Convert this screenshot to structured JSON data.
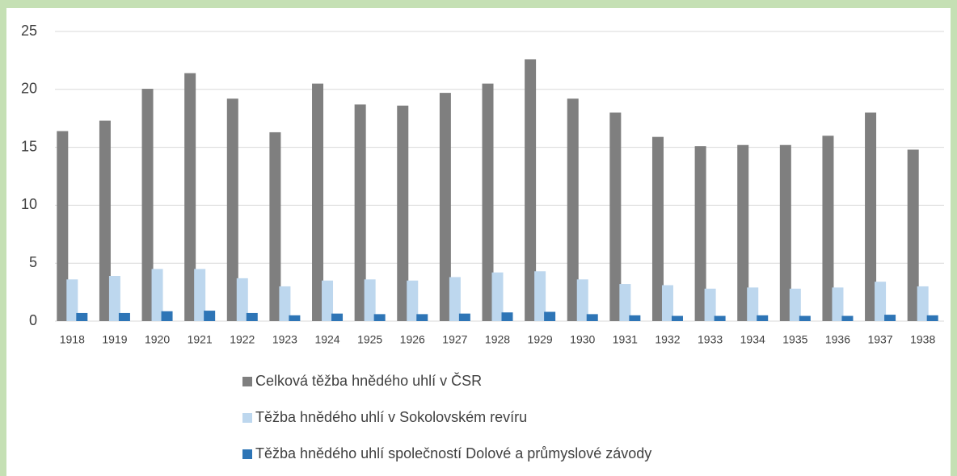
{
  "chart_data": {
    "type": "bar",
    "categories": [
      "1918",
      "1919",
      "1920",
      "1921",
      "1922",
      "1923",
      "1924",
      "1925",
      "1926",
      "1927",
      "1928",
      "1929",
      "1930",
      "1931",
      "1932",
      "1933",
      "1934",
      "1935",
      "1936",
      "1937",
      "1938"
    ],
    "series": [
      {
        "name": "Celková těžba hnědého uhlí v ČSR",
        "color": "#7f7f7f",
        "values": [
          16.4,
          17.3,
          20.05,
          21.4,
          19.2,
          16.3,
          20.5,
          18.7,
          18.6,
          19.7,
          20.5,
          22.6,
          19.2,
          18.0,
          15.9,
          15.1,
          15.2,
          15.2,
          16.0,
          18.0,
          14.8
        ]
      },
      {
        "name": "Těžba hnědého uhlí v Sokolovském revíru",
        "color": "#bdd7ee",
        "values": [
          3.6,
          3.9,
          4.5,
          4.5,
          3.7,
          3.0,
          3.5,
          3.6,
          3.5,
          3.8,
          4.2,
          4.3,
          3.6,
          3.2,
          3.1,
          2.8,
          2.9,
          2.8,
          2.9,
          3.4,
          3.0
        ]
      },
      {
        "name": "Těžba hnědého uhlí společností Dolové a průmyslové závody",
        "color": "#2e75b6",
        "values": [
          0.7,
          0.7,
          0.85,
          0.9,
          0.7,
          0.5,
          0.65,
          0.6,
          0.6,
          0.65,
          0.75,
          0.8,
          0.6,
          0.5,
          0.45,
          0.45,
          0.5,
          0.45,
          0.45,
          0.55,
          0.5
        ]
      }
    ],
    "ylim": [
      0,
      25
    ],
    "yticks": [
      0,
      5,
      10,
      15,
      20,
      25
    ],
    "grid": true
  }
}
